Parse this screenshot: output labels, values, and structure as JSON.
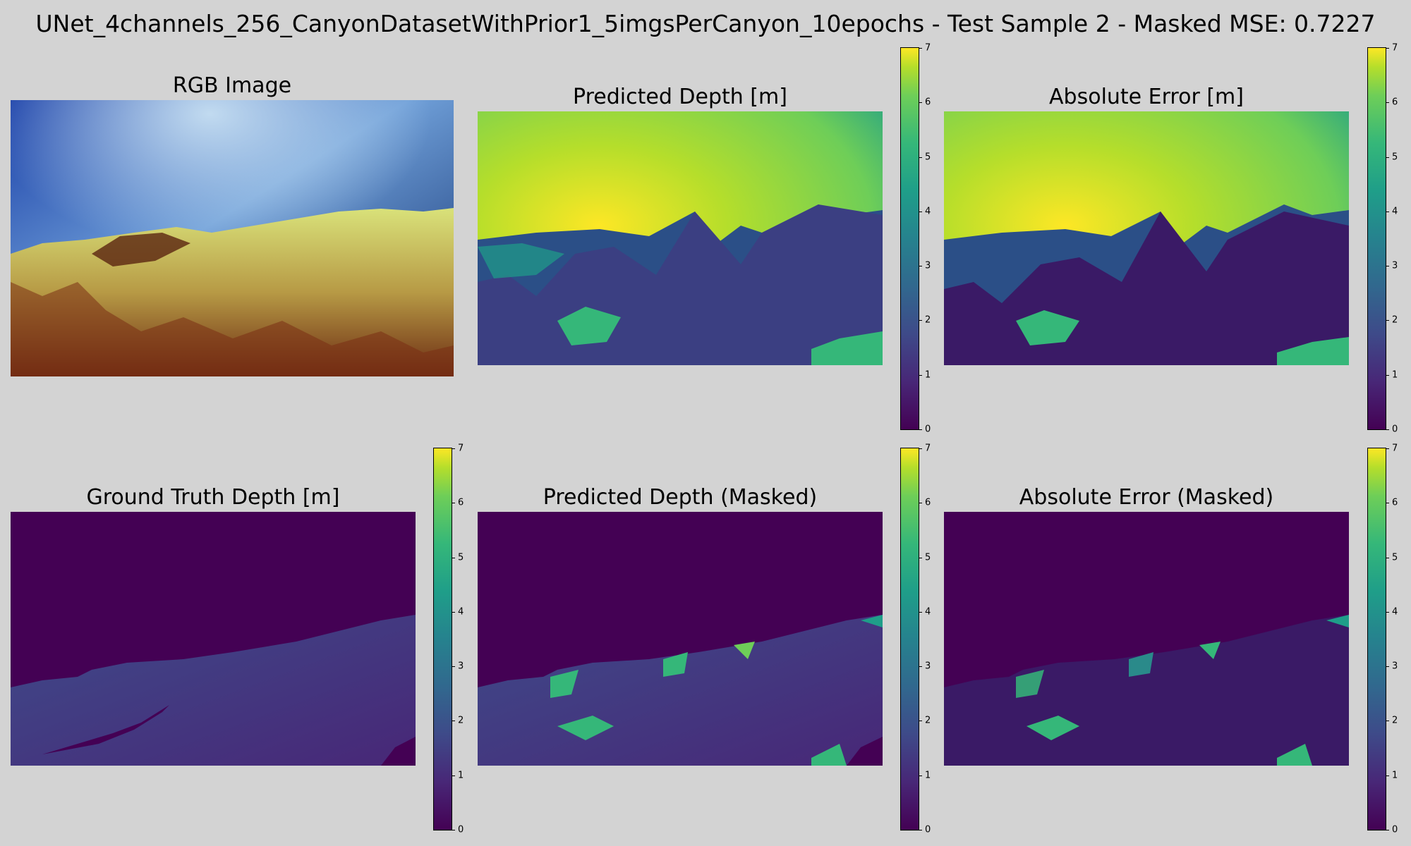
{
  "figure": {
    "suptitle": "UNet_4channels_256_CanyonDatasetWithPrior1_5imgsPerCanyon_10epochs - Test Sample 2 - Masked MSE: 0.7227"
  },
  "panels": {
    "rgb": {
      "title": "RGB Image"
    },
    "pred": {
      "title": "Predicted Depth [m]"
    },
    "err": {
      "title": "Absolute Error [m]"
    },
    "gt": {
      "title": "Ground Truth Depth [m]"
    },
    "pred_masked": {
      "title": "Predicted Depth (Masked)"
    },
    "err_masked": {
      "title": "Absolute Error (Masked)"
    }
  },
  "colormap": {
    "name": "viridis",
    "low": "#440154",
    "mid": "#21918c",
    "high": "#fde725"
  },
  "chart_data": {
    "type": "heatmap",
    "colorbar_range": [
      0,
      7
    ],
    "colorbar_ticks": [
      "0",
      "1",
      "2",
      "3",
      "4",
      "5",
      "6",
      "7"
    ],
    "metric": {
      "label": "Masked MSE",
      "value": 0.7227
    },
    "sample": 2
  }
}
